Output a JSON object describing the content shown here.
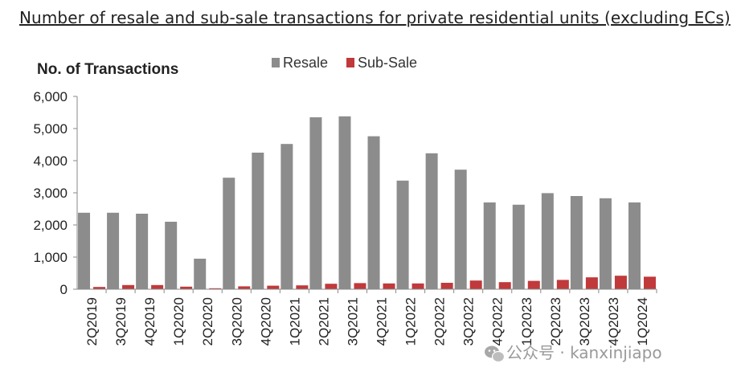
{
  "page": {
    "title": "Number of resale and sub-sale transactions for private residential units (excluding ECs)"
  },
  "watermark": {
    "text": "公众号 · kanxinjiapo",
    "icon": "wechat-icon"
  },
  "chart_data": {
    "type": "bar",
    "title": "",
    "xlabel": "",
    "ylabel": "No. of Transactions",
    "ylim": [
      0,
      6000
    ],
    "yticks": [
      0,
      1000,
      2000,
      3000,
      4000,
      5000,
      6000
    ],
    "ytick_labels": [
      "0",
      "1,000",
      "2,000",
      "3,000",
      "4,000",
      "5,000",
      "6,000"
    ],
    "grid": false,
    "legend_position": "top",
    "categories": [
      "2Q2019",
      "3Q2019",
      "4Q2019",
      "1Q2020",
      "2Q2020",
      "3Q2020",
      "4Q2020",
      "1Q2021",
      "2Q2021",
      "3Q2021",
      "4Q2021",
      "1Q2022",
      "2Q2022",
      "3Q2022",
      "4Q2022",
      "1Q2023",
      "2Q2023",
      "3Q2023",
      "4Q2023",
      "1Q2024"
    ],
    "series": [
      {
        "name": "Resale",
        "color": "#8c8c8c",
        "values": [
          2380,
          2380,
          2350,
          2100,
          950,
          3470,
          4250,
          4520,
          5350,
          5380,
          4760,
          3380,
          4230,
          3720,
          2700,
          2630,
          2990,
          2900,
          2830,
          2700
        ]
      },
      {
        "name": "Sub-Sale",
        "color": "#c0393b",
        "values": [
          70,
          130,
          130,
          80,
          30,
          90,
          110,
          120,
          170,
          190,
          180,
          180,
          200,
          270,
          220,
          260,
          290,
          370,
          420,
          390
        ]
      }
    ]
  }
}
